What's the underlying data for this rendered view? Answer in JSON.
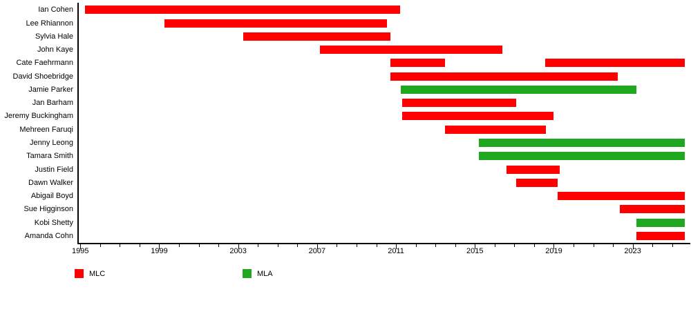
{
  "colors": {
    "MLC": "#ff0000",
    "MLA": "#1fa81f",
    "axis": "#000000",
    "text": "#000000",
    "background": "#ffffff"
  },
  "chart_data": {
    "type": "bar",
    "subtype": "gantt-timeline",
    "title": "",
    "xlabel": "",
    "ylabel": "",
    "grid": false,
    "legend_position": "bottom-left",
    "legend": [
      {
        "label": "MLC",
        "color": "#ff0000"
      },
      {
        "label": "MLA",
        "color": "#1fa81f"
      }
    ],
    "x_axis": {
      "min_year": 1994.85,
      "max_year": 2025.85,
      "major_tick_years": [
        1995,
        1999,
        2003,
        2007,
        2011,
        2015,
        2019,
        2023
      ],
      "minor_tick_interval_years": 1,
      "minor_tick_last_year": 2025
    },
    "members": [
      {
        "name": "Ian Cohen",
        "terms": [
          {
            "role": "MLC",
            "start": 1995.25,
            "end": 2011.2
          }
        ]
      },
      {
        "name": "Lee Rhiannon",
        "terms": [
          {
            "role": "MLC",
            "start": 1999.25,
            "end": 2010.55
          }
        ]
      },
      {
        "name": "Sylvia Hale",
        "terms": [
          {
            "role": "MLC",
            "start": 2003.25,
            "end": 2010.7
          }
        ]
      },
      {
        "name": "John Kaye",
        "terms": [
          {
            "role": "MLC",
            "start": 2007.15,
            "end": 2016.4
          }
        ]
      },
      {
        "name": "Cate Faehrmann",
        "terms": [
          {
            "role": "MLC",
            "start": 2010.7,
            "end": 2013.5
          },
          {
            "role": "MLC",
            "start": 2018.55,
            "end": 2025.65
          }
        ]
      },
      {
        "name": "David Shoebridge",
        "terms": [
          {
            "role": "MLC",
            "start": 2010.7,
            "end": 2022.25
          }
        ]
      },
      {
        "name": "Jamie Parker",
        "terms": [
          {
            "role": "MLA",
            "start": 2011.25,
            "end": 2023.2
          }
        ]
      },
      {
        "name": "Jan Barham",
        "terms": [
          {
            "role": "MLC",
            "start": 2011.3,
            "end": 2017.1
          }
        ]
      },
      {
        "name": "Jeremy Buckingham",
        "terms": [
          {
            "role": "MLC",
            "start": 2011.3,
            "end": 2019.0
          }
        ]
      },
      {
        "name": "Mehreen Faruqi",
        "terms": [
          {
            "role": "MLC",
            "start": 2013.5,
            "end": 2018.6
          }
        ]
      },
      {
        "name": "Jenny Leong",
        "terms": [
          {
            "role": "MLA",
            "start": 2015.2,
            "end": 2025.65
          }
        ]
      },
      {
        "name": "Tamara Smith",
        "terms": [
          {
            "role": "MLA",
            "start": 2015.2,
            "end": 2025.65
          }
        ]
      },
      {
        "name": "Justin Field",
        "terms": [
          {
            "role": "MLC",
            "start": 2016.6,
            "end": 2019.3
          }
        ]
      },
      {
        "name": "Dawn Walker",
        "terms": [
          {
            "role": "MLC",
            "start": 2017.1,
            "end": 2019.2
          }
        ]
      },
      {
        "name": "Abigail Boyd",
        "terms": [
          {
            "role": "MLC",
            "start": 2019.2,
            "end": 2025.65
          }
        ]
      },
      {
        "name": "Sue Higginson",
        "terms": [
          {
            "role": "MLC",
            "start": 2022.35,
            "end": 2025.65
          }
        ]
      },
      {
        "name": "Kobi Shetty",
        "terms": [
          {
            "role": "MLA",
            "start": 2023.2,
            "end": 2025.65
          }
        ]
      },
      {
        "name": "Amanda Cohn",
        "terms": [
          {
            "role": "MLC",
            "start": 2023.2,
            "end": 2025.65
          }
        ]
      }
    ]
  }
}
